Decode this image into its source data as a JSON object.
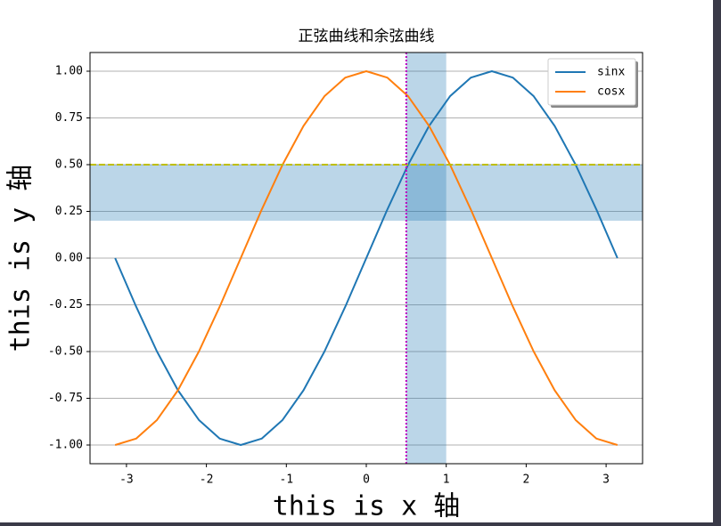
{
  "chart_data": {
    "type": "line",
    "title": "正弦曲线和余弦曲线",
    "x_label": "this is x 轴",
    "y_label": "this is y 轴",
    "x": [
      -3.1416,
      -2.8798,
      -2.618,
      -2.3562,
      -2.0944,
      -1.8326,
      -1.5708,
      -1.309,
      -1.0472,
      -0.7854,
      -0.5236,
      -0.2618,
      0,
      0.2618,
      0.5236,
      0.7854,
      1.0472,
      1.309,
      1.5708,
      1.8326,
      2.0944,
      2.3562,
      2.618,
      2.8798,
      3.1416
    ],
    "series": [
      {
        "name": "sinx",
        "color": "#1f77b4",
        "values": [
          0,
          -0.2588,
          -0.5,
          -0.7071,
          -0.866,
          -0.9659,
          -1,
          -0.9659,
          -0.866,
          -0.7071,
          -0.5,
          -0.2588,
          0,
          0.2588,
          0.5,
          0.7071,
          0.866,
          0.9659,
          1,
          0.9659,
          0.866,
          0.7071,
          0.5,
          0.2588,
          0
        ]
      },
      {
        "name": "cosx",
        "color": "#ff7f0e",
        "values": [
          -1,
          -0.9659,
          -0.866,
          -0.7071,
          -0.5,
          -0.2588,
          0,
          0.2588,
          0.5,
          0.7071,
          0.866,
          0.9659,
          1,
          0.9659,
          0.866,
          0.7071,
          0.5,
          0.2588,
          0,
          -0.2588,
          -0.5,
          -0.7071,
          -0.866,
          -0.9659,
          -1
        ]
      }
    ],
    "xlim": [
      -3.456,
      3.456
    ],
    "ylim": [
      -1.1,
      1.1
    ],
    "xticks": [
      -3,
      -2,
      -1,
      0,
      1,
      2,
      3
    ],
    "yticks": [
      {
        "value": -1,
        "label": "-1.00"
      },
      {
        "value": -0.75,
        "label": "-0.75"
      },
      {
        "value": -0.5,
        "label": "-0.50"
      },
      {
        "value": -0.25,
        "label": "-0.25"
      },
      {
        "value": 0,
        "label": "0.00"
      },
      {
        "value": 0.25,
        "label": "0.25"
      },
      {
        "value": 0.5,
        "label": "0.50"
      },
      {
        "value": 0.75,
        "label": "0.75"
      },
      {
        "value": 1,
        "label": "1.00"
      }
    ],
    "grid": "y",
    "legend": "upper right",
    "hspan": [
      0.2,
      0.5
    ],
    "vspan": [
      0.5,
      1
    ],
    "span_color": "#1f77b4",
    "hline": 0.5,
    "hline_color": "#bfbf00",
    "vline": 0.5,
    "vline_color": "#bf00bf"
  }
}
